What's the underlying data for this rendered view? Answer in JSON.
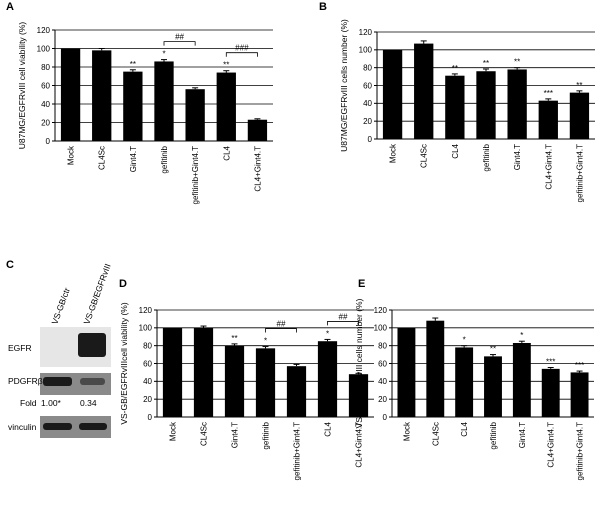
{
  "colors": {
    "bar": "#000000",
    "axis": "#000000",
    "blot_band": "#1a1a1a",
    "blot_bg": "#8a8a8a"
  },
  "chart_data": [
    {
      "panel": "A",
      "type": "bar",
      "ylabel": "U87MG/EGFRvIII cell viability (%)",
      "ylim": [
        0,
        120
      ],
      "yticks": [
        0,
        20,
        40,
        60,
        80,
        100,
        120
      ],
      "categories": [
        "Mock",
        "CL4Sc",
        "Gint4.T",
        "gefitinib",
        "gefitinib+Gint4.T",
        "CL4",
        "CL4+Gint4.T"
      ],
      "values": [
        100,
        98,
        75,
        86,
        56,
        74,
        23
      ],
      "errors": [
        0,
        2,
        2,
        2,
        1.5,
        2,
        1
      ],
      "marks": [
        "",
        "",
        "**",
        "*",
        "",
        "**",
        ""
      ],
      "brackets": [
        {
          "from": 3,
          "to": 4,
          "label": "##"
        },
        {
          "from": 5,
          "to": 6,
          "label": "###"
        }
      ]
    },
    {
      "panel": "B",
      "type": "bar",
      "ylabel": "U87MG/EGFRvIII cells number (%)",
      "ylim": [
        0,
        120
      ],
      "yticks": [
        0,
        20,
        40,
        60,
        80,
        100,
        120
      ],
      "categories": [
        "Mock",
        "CL4Sc",
        "CL4",
        "gefitinib",
        "Gint4.T",
        "CL4+Gint4.T",
        "gefitinib+Gint4.T"
      ],
      "values": [
        100,
        107,
        71,
        76,
        78,
        43,
        52
      ],
      "errors": [
        0,
        3,
        2,
        2.5,
        2,
        2,
        2
      ],
      "marks": [
        "",
        "",
        "**",
        "**",
        "**",
        "***",
        "**"
      ],
      "brackets": []
    },
    {
      "panel": "D",
      "type": "bar",
      "ylabel": "VS-GB/EGFRvIIIcell viability (%)",
      "ylim": [
        0,
        120
      ],
      "yticks": [
        0,
        20,
        40,
        60,
        80,
        100,
        120
      ],
      "categories": [
        "Mock",
        "CL4Sc",
        "Gint4.T",
        "gefitinib",
        "gefitinib+Gint4.T",
        "CL4",
        "CL4+Gint4.T"
      ],
      "values": [
        100,
        100,
        80,
        77,
        57,
        85,
        48
      ],
      "errors": [
        0,
        2,
        2,
        2,
        2,
        2,
        1
      ],
      "marks": [
        "",
        "",
        "**",
        "*",
        "",
        "*",
        ""
      ],
      "brackets": [
        {
          "from": 3,
          "to": 4,
          "label": "##"
        },
        {
          "from": 5,
          "to": 6,
          "label": "##"
        }
      ]
    },
    {
      "panel": "E",
      "type": "bar",
      "ylabel": "VS-GB/EGFRvIII cells number (%)",
      "ylim": [
        0,
        120
      ],
      "yticks": [
        0,
        20,
        40,
        60,
        80,
        100,
        120
      ],
      "categories": [
        "Mock",
        "CL4Sc",
        "CL4",
        "gefitinib",
        "Gint4.T",
        "CL4+Gint4.T",
        "gefitinib+Gint4.T"
      ],
      "values": [
        100,
        108,
        78,
        68,
        83,
        54,
        50
      ],
      "errors": [
        0,
        3,
        2,
        2,
        2,
        1.5,
        1.5
      ],
      "marks": [
        "",
        "",
        "*",
        "**",
        "*",
        "***",
        "***"
      ],
      "brackets": []
    }
  ],
  "blot": {
    "panel": "C",
    "lanes": [
      "VS-GB/ctr",
      "VS-GB/EGFRvIII"
    ],
    "rows": [
      "EGFR",
      "PDGFRβ",
      "vinculin"
    ],
    "fold_label": "Fold",
    "fold_values": [
      "1.00*",
      "0.34"
    ]
  }
}
